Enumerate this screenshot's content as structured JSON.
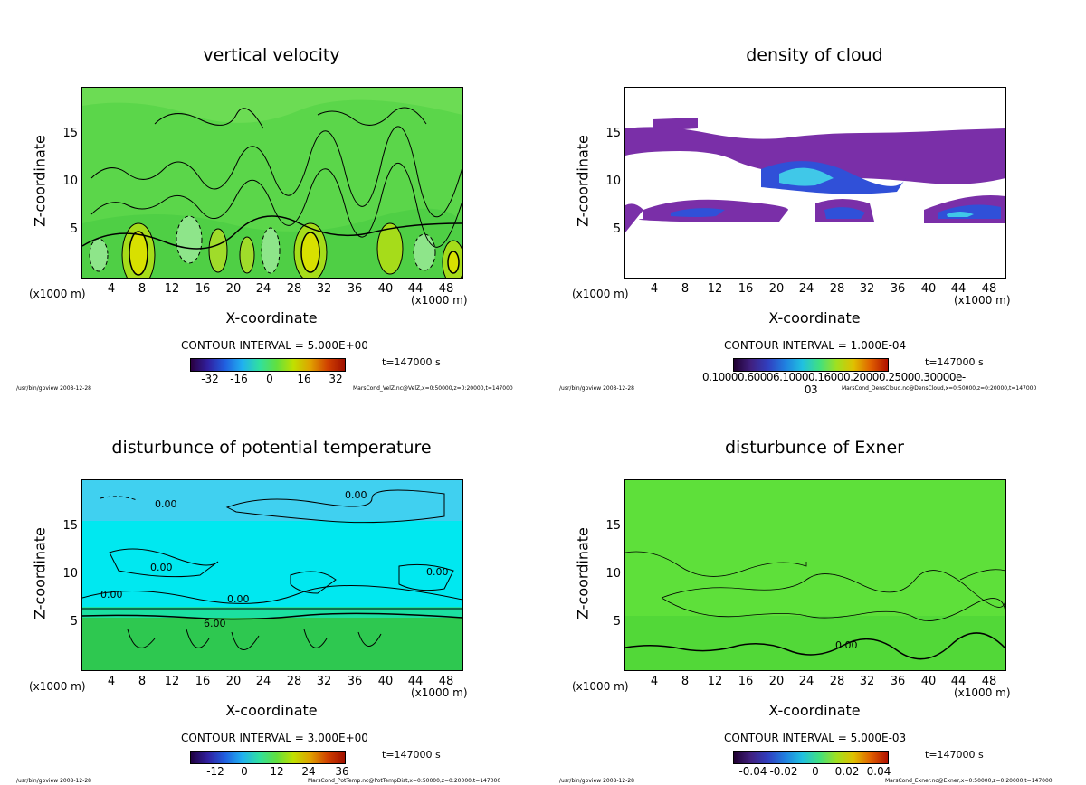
{
  "chart_data": [
    {
      "type": "heatmap",
      "title": "vertical velocity",
      "xlabel": "X-coordinate",
      "ylabel": "Z-coordinate",
      "x_unit_left": "(x1000 m)",
      "x_unit_right": "(x1000 m)",
      "xticks": [
        "4",
        "8",
        "12",
        "16",
        "20",
        "24",
        "28",
        "32",
        "36",
        "40",
        "44",
        "48"
      ],
      "yticks": [
        "5",
        "10",
        "15"
      ],
      "xlim": [
        0,
        50
      ],
      "ylim": [
        0,
        20
      ],
      "contour_interval": "CONTOUR INTERVAL = 5.000E+00",
      "colorbar_ticks": [
        "-32",
        "-16",
        "0",
        "16",
        "32"
      ],
      "colorbar_range": [
        -40,
        40
      ],
      "time_label": "t=147000 s",
      "footer_left": "/usr/bin/gpview  2008-12-28",
      "footer_right": "MarsCond_VelZ.nc@VelZ,x=0:50000,z=0:20000,t=147000",
      "background": "#5bd64a",
      "colors": {
        "low": "#8fe58a",
        "high": "#c8d800",
        "core": "#e0e000"
      }
    },
    {
      "type": "heatmap",
      "title": "density of cloud",
      "xlabel": "X-coordinate",
      "ylabel": "Z-coordinate",
      "x_unit_left": "(x1000 m)",
      "x_unit_right": "(x1000 m)",
      "xticks": [
        "4",
        "8",
        "12",
        "16",
        "20",
        "24",
        "28",
        "32",
        "36",
        "40",
        "44",
        "48"
      ],
      "yticks": [
        "5",
        "10",
        "15"
      ],
      "xlim": [
        0,
        50
      ],
      "ylim": [
        0,
        20
      ],
      "contour_interval": "CONTOUR INTERVAL = 1.000E-04",
      "colorbar_label": "0.10000.60006.10000.16000.20000.25000.30000e-03",
      "colorbar_range": [
        0,
        0.0003
      ],
      "time_label": "t=147000 s",
      "footer_left": "/usr/bin/gpview  2008-12-28",
      "footer_right": "MarsCond_DensCloud.nc@DensCloud,x=0:50000,z=0:20000,t=147000",
      "background": "#ffffff",
      "colors": {
        "band": "#7a2fa8",
        "mid": "#3050d8",
        "core": "#40c8e8"
      }
    },
    {
      "type": "heatmap",
      "title": "disturbunce of potential temperature",
      "xlabel": "X-coordinate",
      "ylabel": "Z-coordinate",
      "x_unit_left": "(x1000 m)",
      "x_unit_right": "(x1000 m)",
      "xticks": [
        "4",
        "8",
        "12",
        "16",
        "20",
        "24",
        "28",
        "32",
        "36",
        "40",
        "44",
        "48"
      ],
      "yticks": [
        "5",
        "10",
        "15"
      ],
      "xlim": [
        0,
        50
      ],
      "ylim": [
        0,
        20
      ],
      "contour_interval": "CONTOUR INTERVAL = 3.000E+00",
      "colorbar_ticks": [
        "-12",
        "0",
        "12",
        "24",
        "36"
      ],
      "colorbar_range": [
        -18,
        42
      ],
      "contour_labels": [
        "0.00",
        "0.00",
        "0.00",
        "0.00",
        "0.00",
        "0.00",
        "6.00"
      ],
      "time_label": "t=147000 s",
      "footer_left": "/usr/bin/gpview  2008-12-28",
      "footer_right": "MarsCond_PotTemp.nc@PotTempDist,x=0:50000,z=0:20000,t=147000",
      "background": "#00e8f0",
      "colors": {
        "low": "#1ce0a0",
        "surface": "#2ec850",
        "top": "#40c8f0"
      }
    },
    {
      "type": "heatmap",
      "title": "disturbunce of Exner",
      "xlabel": "X-coordinate",
      "ylabel": "Z-coordinate",
      "x_unit_left": "(x1000 m)",
      "x_unit_right": "(x1000 m)",
      "xticks": [
        "4",
        "8",
        "12",
        "16",
        "20",
        "24",
        "28",
        "32",
        "36",
        "40",
        "44",
        "48"
      ],
      "yticks": [
        "5",
        "10",
        "15"
      ],
      "xlim": [
        0,
        50
      ],
      "ylim": [
        0,
        20
      ],
      "contour_interval": "CONTOUR INTERVAL = 5.000E-03",
      "colorbar_ticks": [
        "-0.04",
        "-0.02",
        "0",
        "0.02",
        "0.04"
      ],
      "colorbar_range": [
        -0.05,
        0.05
      ],
      "contour_labels": [
        "0.00"
      ],
      "time_label": "t=147000 s",
      "footer_left": "/usr/bin/gpview  2008-12-28",
      "footer_right": "MarsCond_Exner.nc@Exner,x=0:50000,z=0:20000,t=147000",
      "background": "#5ee03a",
      "colors": {
        "bottom": "#48d040"
      }
    }
  ]
}
